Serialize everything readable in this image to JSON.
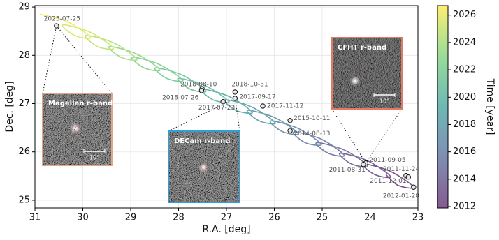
{
  "chart_data": {
    "type": "scatter",
    "xlabel": "R.A. [deg]",
    "ylabel": "Dec. [deg]",
    "xlim": [
      31,
      23
    ],
    "ylim": [
      24.84,
      29.03
    ],
    "xticks": [
      31,
      30,
      29,
      28,
      27,
      26,
      25,
      24,
      23
    ],
    "yticks": [
      25,
      26,
      27,
      28,
      29
    ],
    "grid": true,
    "points": {
      "x": [
        30.55,
        27.51,
        27.52,
        26.82,
        26.82,
        27.07,
        26.24,
        25.67,
        25.67,
        24.09,
        24.14,
        23.25,
        23.2,
        23.09
      ],
      "y": [
        28.61,
        27.31,
        27.27,
        27.24,
        27.11,
        27.04,
        26.95,
        26.65,
        26.44,
        25.77,
        25.74,
        25.51,
        25.48,
        25.27
      ],
      "labels": [
        "2025-07-25",
        "2018-08-10",
        "2018-07-26",
        "2018-10-31",
        "2017-09-17",
        "2017-07-23",
        "2017-11-12",
        "2015-10-11",
        "2014-08-13",
        "2011-09-05",
        "2011-08-31",
        "2011-11-24",
        "2011-12-01",
        "2012-01-28"
      ]
    },
    "track": {
      "t": [
        2011.57,
        2011.82,
        2012.07,
        2012.32,
        2012.57,
        2012.82,
        2013.07,
        2013.32,
        2013.57,
        2013.82,
        2014.07,
        2014.32,
        2014.57,
        2014.82,
        2015.07,
        2015.32,
        2015.57,
        2015.82,
        2016.07,
        2016.32,
        2016.57,
        2016.82,
        2017.07,
        2017.32,
        2017.57,
        2017.82,
        2018.07,
        2018.32,
        2018.57,
        2018.82,
        2019.07,
        2019.32,
        2019.57,
        2019.82,
        2020.07,
        2020.32,
        2020.57,
        2020.82,
        2021.07,
        2021.32,
        2021.57,
        2021.82,
        2022.07,
        2022.32,
        2022.57,
        2022.82,
        2023.07,
        2023.32,
        2023.57,
        2023.82,
        2024.07,
        2024.32,
        2024.57,
        2024.82,
        2025.07,
        2025.32,
        2025.57,
        2025.82,
        2026.07,
        2026.32,
        2026.57
      ],
      "x": [
        23.67,
        23.42,
        23.09,
        23.58,
        24.15,
        23.9,
        23.57,
        24.06,
        24.63,
        24.39,
        24.05,
        24.54,
        25.12,
        24.87,
        24.54,
        25.03,
        25.6,
        25.35,
        25.02,
        25.51,
        26.08,
        25.83,
        25.5,
        25.99,
        26.56,
        26.31,
        25.98,
        26.47,
        27.04,
        26.8,
        26.46,
        26.95,
        27.53,
        27.28,
        26.95,
        27.44,
        28.01,
        27.76,
        27.43,
        27.92,
        28.49,
        28.24,
        27.91,
        28.4,
        28.97,
        28.72,
        28.39,
        28.88,
        29.45,
        29.2,
        28.87,
        29.36,
        29.94,
        29.69,
        29.36,
        29.85,
        30.42,
        30.17,
        29.84,
        30.33,
        30.9
      ],
      "y": [
        25.53,
        25.31,
        25.27,
        25.6,
        25.75,
        25.53,
        25.49,
        25.82,
        25.97,
        25.75,
        25.71,
        26.04,
        26.19,
        25.97,
        25.93,
        26.27,
        26.41,
        26.19,
        26.16,
        26.49,
        26.64,
        26.42,
        26.38,
        26.71,
        26.86,
        26.64,
        26.6,
        26.93,
        27.08,
        26.86,
        26.82,
        27.15,
        27.3,
        27.08,
        27.04,
        27.37,
        27.52,
        27.3,
        27.26,
        27.59,
        27.74,
        27.52,
        27.48,
        27.81,
        27.96,
        27.74,
        27.7,
        28.03,
        28.18,
        27.96,
        27.92,
        28.26,
        28.41,
        28.18,
        28.15,
        28.48,
        28.63,
        28.41,
        28.37,
        28.7,
        28.85
      ]
    },
    "colorbar": {
      "label": "Time [year]",
      "colormap": "viridis",
      "lim": [
        2011.9,
        2026.7
      ],
      "ticks": [
        2012,
        2014,
        2016,
        2018,
        2020,
        2022,
        2024,
        2026
      ]
    },
    "insets": [
      {
        "title": "Magellan r-band",
        "scale_label": "10\""
      },
      {
        "title": "DECam r-band"
      },
      {
        "title": "CFHT r-band",
        "scale_label": "10\""
      }
    ]
  }
}
